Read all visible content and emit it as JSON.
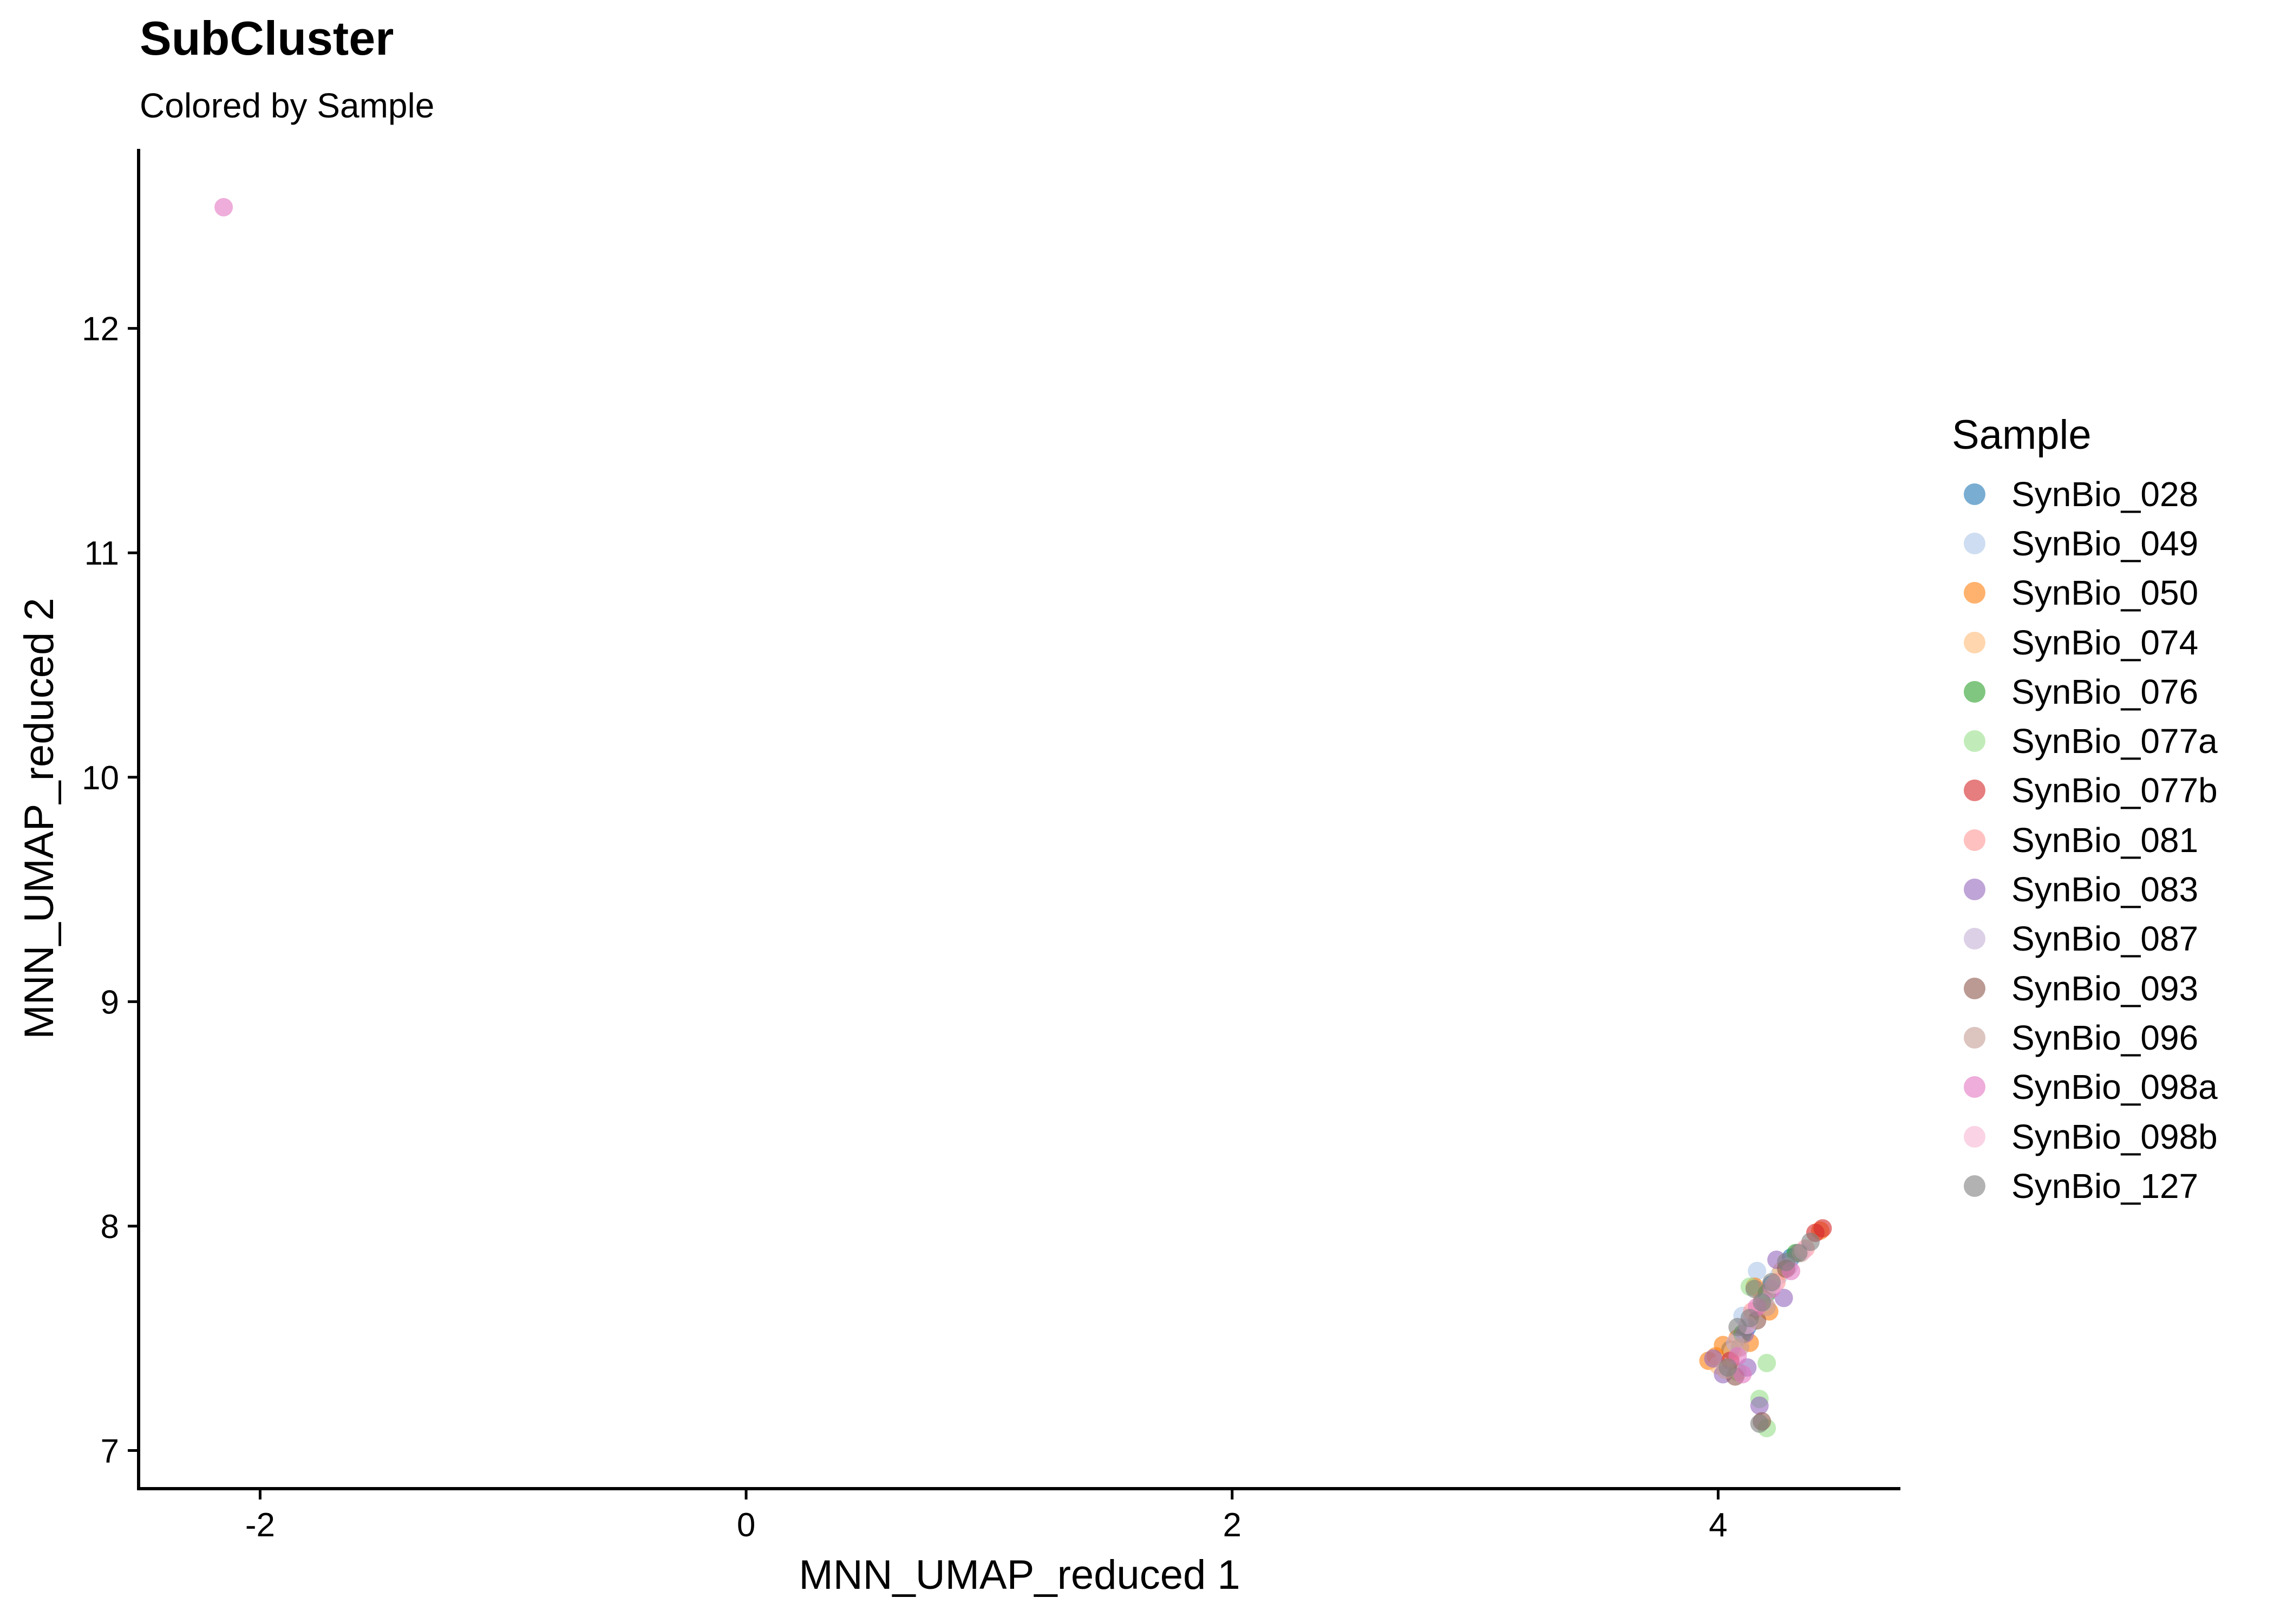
{
  "chart_data": {
    "type": "scatter",
    "title": "SubCluster",
    "subtitle": "Colored by Sample",
    "xlabel": "MNN_UMAP_reduced 1",
    "ylabel": "MNN_UMAP_reduced 2",
    "xlim": [
      -2.5,
      4.75
    ],
    "ylim": [
      6.83,
      12.8
    ],
    "x_ticks": [
      -2,
      0,
      2,
      4
    ],
    "y_ticks": [
      7,
      8,
      9,
      10,
      11,
      12
    ],
    "grid": false,
    "legend_position": "right",
    "legend_title": "Sample",
    "series": [
      {
        "name": "SynBio_028",
        "color": "#1F77B4",
        "points": [
          [
            4.12,
            7.55
          ],
          [
            4.22,
            7.74
          ],
          [
            4.3,
            7.86
          ],
          [
            4.05,
            7.45
          ]
        ]
      },
      {
        "name": "SynBio_049",
        "color": "#AEC7E8",
        "points": [
          [
            4.16,
            7.8
          ],
          [
            4.25,
            7.78
          ],
          [
            4.1,
            7.6
          ]
        ]
      },
      {
        "name": "SynBio_050",
        "color": "#FF7F0E",
        "points": [
          [
            3.96,
            7.4
          ],
          [
            3.99,
            7.42
          ],
          [
            4.02,
            7.47
          ],
          [
            4.08,
            7.5
          ],
          [
            4.15,
            7.73
          ],
          [
            4.21,
            7.62
          ],
          [
            4.42,
            7.98
          ],
          [
            4.13,
            7.48
          ]
        ]
      },
      {
        "name": "SynBio_074",
        "color": "#FFBB78",
        "points": [
          [
            4.0,
            7.38
          ],
          [
            4.06,
            7.44
          ],
          [
            4.18,
            7.69
          ],
          [
            4.26,
            7.8
          ]
        ]
      },
      {
        "name": "SynBio_076",
        "color": "#2CA02C",
        "points": [
          [
            4.1,
            7.52
          ],
          [
            4.2,
            7.7
          ],
          [
            4.32,
            7.88
          ]
        ]
      },
      {
        "name": "SynBio_077a",
        "color": "#98DF8A",
        "points": [
          [
            4.2,
            7.39
          ],
          [
            4.17,
            7.23
          ],
          [
            4.2,
            7.1
          ],
          [
            4.13,
            7.73
          ],
          [
            4.08,
            7.35
          ]
        ]
      },
      {
        "name": "SynBio_077b",
        "color": "#D62728",
        "points": [
          [
            4.43,
            7.99
          ],
          [
            4.4,
            7.97
          ],
          [
            4.05,
            7.4
          ]
        ]
      },
      {
        "name": "SynBio_081",
        "color": "#FF9896",
        "points": [
          [
            4.14,
            7.62
          ],
          [
            4.24,
            7.75
          ],
          [
            4.36,
            7.9
          ]
        ]
      },
      {
        "name": "SynBio_083",
        "color": "#9467BD",
        "points": [
          [
            3.98,
            7.41
          ],
          [
            4.11,
            7.52
          ],
          [
            4.17,
            7.2
          ],
          [
            4.24,
            7.85
          ],
          [
            4.27,
            7.68
          ],
          [
            4.12,
            7.37
          ],
          [
            4.02,
            7.34
          ]
        ]
      },
      {
        "name": "SynBio_087",
        "color": "#C5B0D5",
        "points": [
          [
            4.07,
            7.48
          ],
          [
            4.19,
            7.66
          ],
          [
            4.29,
            7.82
          ]
        ]
      },
      {
        "name": "SynBio_093",
        "color": "#8C564B",
        "points": [
          [
            4.18,
            7.13
          ],
          [
            4.07,
            7.33
          ],
          [
            4.16,
            7.58
          ],
          [
            4.28,
            7.81
          ]
        ]
      },
      {
        "name": "SynBio_096",
        "color": "#C49C94",
        "points": [
          [
            4.03,
            7.36
          ],
          [
            4.09,
            7.46
          ],
          [
            4.2,
            7.64
          ],
          [
            4.34,
            7.88
          ]
        ]
      },
      {
        "name": "SynBio_098a",
        "color": "#E377C2",
        "points": [
          [
            -2.15,
            12.54
          ],
          [
            4.1,
            7.34
          ],
          [
            4.16,
            7.64
          ],
          [
            4.22,
            7.72
          ],
          [
            4.08,
            7.42
          ],
          [
            4.3,
            7.8
          ]
        ]
      },
      {
        "name": "SynBio_098b",
        "color": "#F7B6D2",
        "points": [
          [
            4.12,
            7.56
          ],
          [
            4.23,
            7.74
          ],
          [
            4.35,
            7.89
          ]
        ]
      },
      {
        "name": "SynBio_127",
        "color": "#7F7F7F",
        "points": [
          [
            4.04,
            7.37
          ],
          [
            4.08,
            7.55
          ],
          [
            4.13,
            7.59
          ],
          [
            4.18,
            7.66
          ],
          [
            4.22,
            7.75
          ],
          [
            4.28,
            7.84
          ],
          [
            4.33,
            7.88
          ],
          [
            4.38,
            7.93
          ],
          [
            4.17,
            7.12
          ],
          [
            4.15,
            7.72
          ]
        ]
      }
    ]
  }
}
